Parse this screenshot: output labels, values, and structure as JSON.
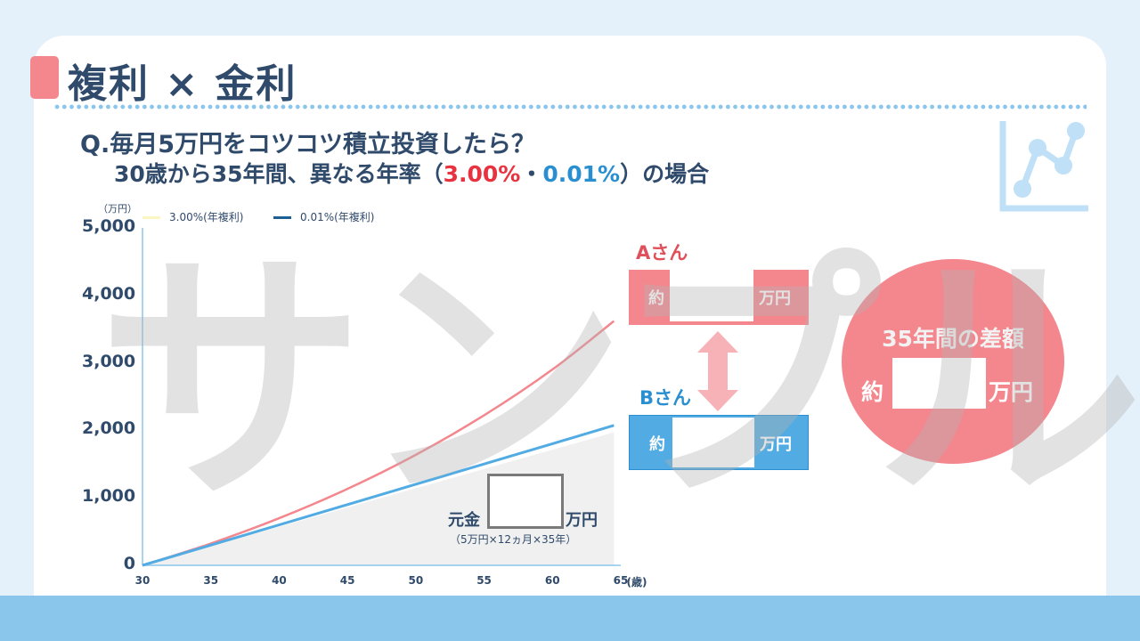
{
  "header": {
    "title": "複利 × 金利",
    "question_line1": "Q.毎月5万円をコツコツ積立投資したら？",
    "question_line2_prefix": "30歳から35年間、異なる年率（",
    "rate_a": "3.00%",
    "separator": "・",
    "rate_b": "0.01%",
    "question_line2_suffix": "）の場合"
  },
  "colors": {
    "accent_pink": "#f4878e",
    "accent_blue": "#52ace3",
    "text_navy": "#2f4a6a",
    "rate_red": "#e8323f",
    "rate_blue": "#2a8fd0",
    "band_blue": "#8ac6ec"
  },
  "chart_data": {
    "type": "line",
    "title": "",
    "xlabel": "(歳)",
    "ylabel": "（万円）",
    "xlim": [
      30,
      65
    ],
    "ylim": [
      0,
      5000
    ],
    "x_ticks": [
      "30",
      "35",
      "40",
      "45",
      "50",
      "55",
      "60",
      "65"
    ],
    "x_unit": "(歳)",
    "y_ticks": [
      "0",
      "1,000",
      "2,000",
      "3,000",
      "4,000",
      "5,000"
    ],
    "legend": [
      "3.00%(年複利)",
      "0.01%(年複利)"
    ],
    "legend_position": "top-left",
    "grid": false,
    "series": [
      {
        "name": "3.00%(年複利)",
        "color": "#f4878e",
        "x": [
          30,
          35,
          40,
          45,
          50,
          55,
          60,
          64.5
        ],
        "values": [
          0,
          323,
          698,
          1133,
          1638,
          2223,
          2902,
          3620
        ]
      },
      {
        "name": "0.01%(年複利)",
        "color": "#52ace3",
        "x": [
          30,
          35,
          40,
          45,
          50,
          55,
          60,
          64.5
        ],
        "values": [
          0,
          300,
          600,
          900,
          1201,
          1502,
          1802,
          2073
        ]
      },
      {
        "name": "元金",
        "color": "#f0f0f0",
        "type": "area",
        "x": [
          30,
          64.5
        ],
        "values": [
          0,
          1970
        ]
      }
    ]
  },
  "principal": {
    "label": "元金",
    "unit": "万円",
    "note": "（5万円×12ヵ月×35年）"
  },
  "person_a": {
    "name": "Aさん",
    "prefix": "約",
    "unit": "万円"
  },
  "person_b": {
    "name": "Bさん",
    "prefix": "約",
    "unit": "万円"
  },
  "difference": {
    "title": "35年間の差額",
    "prefix": "約",
    "unit": "万円"
  },
  "watermark": "サンプル",
  "icons": {
    "corner": "line-chart-icon"
  }
}
